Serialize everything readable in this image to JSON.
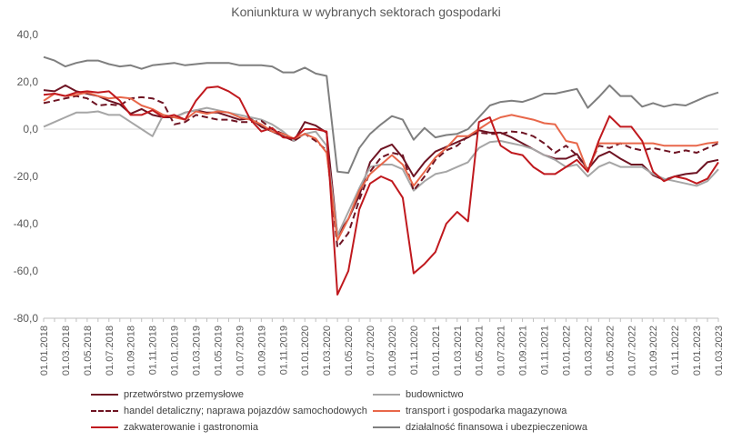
{
  "chart_data": {
    "type": "line",
    "title": "Koniunktura w wybranych sektorach gospodarki",
    "xlabel": "",
    "ylabel": "",
    "ylim": [
      -80,
      40
    ],
    "yticks": [
      40,
      20,
      0,
      -20,
      -40,
      -60,
      -80
    ],
    "ytick_labels": [
      "40,0",
      "20,0",
      "0,0",
      "-20,0",
      "-40,0",
      "-60,0",
      "-80,0"
    ],
    "x": [
      "01.01.2018",
      "01.02.2018",
      "01.03.2018",
      "01.04.2018",
      "01.05.2018",
      "01.06.2018",
      "01.07.2018",
      "01.08.2018",
      "01.09.2018",
      "01.10.2018",
      "01.11.2018",
      "01.12.2018",
      "01.01.2019",
      "01.02.2019",
      "01.03.2019",
      "01.04.2019",
      "01.05.2019",
      "01.06.2019",
      "01.07.2019",
      "01.08.2019",
      "01.09.2019",
      "01.10.2019",
      "01.11.2019",
      "01.12.2019",
      "01.01.2020",
      "01.02.2020",
      "01.03.2020",
      "01.04.2020",
      "01.05.2020",
      "01.06.2020",
      "01.07.2020",
      "01.08.2020",
      "01.09.2020",
      "01.10.2020",
      "01.11.2020",
      "01.12.2020",
      "01.01.2021",
      "01.02.2021",
      "01.03.2021",
      "01.04.2021",
      "01.05.2021",
      "01.06.2021",
      "01.07.2021",
      "01.08.2021",
      "01.09.2021",
      "01.10.2021",
      "01.11.2021",
      "01.12.2021",
      "01.01.2022",
      "01.02.2022",
      "01.03.2022",
      "01.04.2022",
      "01.05.2022",
      "01.06.2022",
      "01.07.2022",
      "01.08.2022",
      "01.09.2022",
      "01.10.2022",
      "01.11.2022",
      "01.12.2022",
      "01.01.2023",
      "01.02.2023",
      "01.03.2023"
    ],
    "x_tick_labels": [
      "01.01.2018",
      "01.03.2018",
      "01.05.2018",
      "01.07.2018",
      "01.09.2018",
      "01.11.2018",
      "01.01.2019",
      "01.03.2019",
      "01.05.2019",
      "01.07.2019",
      "01.09.2019",
      "01.11.2019",
      "01.01.2020",
      "01.03.2020",
      "01.05.2020",
      "01.07.2020",
      "01.09.2020",
      "01.11.2020",
      "01.01.2021",
      "01.03.2021",
      "01.05.2021",
      "01.07.2021",
      "01.09.2021",
      "01.11.2021",
      "01.01.2022",
      "01.03.2022",
      "01.05.2022",
      "01.07.2022",
      "01.09.2022",
      "01.11.2022",
      "01.01.2023",
      "01.03.2023"
    ],
    "legend_position": "bottom",
    "grid": false,
    "series": [
      {
        "name": "przetwórstwo przemysłowe",
        "color": "#6e1423",
        "dash": "solid",
        "values": [
          16.5,
          16,
          18.5,
          16,
          15,
          14,
          12,
          10.5,
          6.5,
          8.5,
          6,
          5,
          5,
          7,
          8,
          7,
          7,
          5.5,
          4,
          4.5,
          1,
          -1,
          -3,
          -5,
          3,
          1.5,
          -1.5,
          -45,
          -38,
          -28,
          -14,
          -8.5,
          -6.5,
          -12,
          -20,
          -14,
          -9.5,
          -7.5,
          -5.5,
          -3.5,
          -0.5,
          -1.5,
          -1.5,
          -3.5,
          -6,
          -8.5,
          -11,
          -12.5,
          -12.5,
          -10.5,
          -17,
          -11.5,
          -9.5,
          -12.5,
          -15,
          -15,
          -19.5,
          -21.5,
          -20,
          -19,
          -18.5,
          -14,
          -13
        ]
      },
      {
        "name": "budownictwo",
        "color": "#a6a6a6",
        "dash": "solid",
        "values": [
          1,
          3,
          5,
          7,
          7,
          7.5,
          6,
          6,
          3,
          0,
          -3,
          6,
          5,
          7,
          8,
          9,
          8,
          7,
          6,
          5,
          4,
          2,
          -1,
          -5,
          -2,
          -1,
          -7,
          -45,
          -35,
          -25,
          -16,
          -15,
          -15,
          -17,
          -26,
          -22,
          -19,
          -18,
          -16,
          -14,
          -8,
          -5.5,
          -5,
          -6,
          -7,
          -8.5,
          -11,
          -13,
          -16,
          -15,
          -20,
          -16,
          -14,
          -16,
          -16,
          -16,
          -19,
          -21,
          -22,
          -23,
          -24,
          -22,
          -17
        ]
      },
      {
        "name": "handel detaliczny; naprawa pojazdów samochodowych",
        "color": "#6e1423",
        "dash": "dashed",
        "values": [
          11,
          12,
          13,
          14,
          13,
          10,
          10.5,
          10,
          13,
          13.5,
          13,
          11,
          2,
          3,
          6,
          5,
          4,
          4,
          3,
          3,
          3.5,
          0,
          -2,
          -5,
          -2,
          -5,
          -9,
          -50,
          -44,
          -30,
          -18,
          -12,
          -10,
          -11,
          -26,
          -20,
          -13,
          -9,
          -7,
          -3,
          -1.5,
          -2,
          -2,
          -1,
          -1.5,
          -3,
          -6,
          -10,
          -7,
          -11,
          -17,
          -7,
          -8,
          -6,
          -8,
          -9,
          -8,
          -9,
          -10,
          -9,
          -10,
          -8,
          -6
        ]
      },
      {
        "name": "transport i gospodarka magazynowa",
        "color": "#e8674a",
        "dash": "solid",
        "values": [
          12,
          15,
          14,
          14.5,
          15.5,
          14,
          13,
          13.5,
          13,
          10,
          8.5,
          6,
          5,
          4,
          7.5,
          6.5,
          7.5,
          7,
          5,
          4,
          2,
          -1,
          -2,
          -4,
          -2,
          -4,
          -10,
          -47,
          -38,
          -26,
          -19,
          -15,
          -11,
          -15,
          -24,
          -18,
          -12,
          -8,
          -3,
          -3,
          0,
          3,
          5,
          6,
          5,
          4,
          2.5,
          2,
          -5,
          -6,
          -18,
          -6,
          -6,
          -6,
          -6,
          -6,
          -6,
          -7,
          -7,
          -7,
          -7,
          -6,
          -5.5
        ]
      },
      {
        "name": "zakwaterowanie i gastronomia",
        "color": "#c0191e",
        "dash": "solid",
        "values": [
          14.5,
          15,
          14,
          15.5,
          16,
          15.5,
          16,
          12,
          6,
          6,
          8,
          5,
          6,
          4,
          12,
          17.5,
          18,
          16,
          13,
          4,
          -1,
          0.5,
          -3.5,
          -4,
          0,
          0,
          -1,
          -70,
          -60,
          -34,
          -23,
          -20,
          -22,
          -29,
          -61,
          -57,
          -52,
          -40,
          -35,
          -39,
          3,
          5,
          -7,
          -10,
          -11,
          -16,
          -19,
          -19,
          -16,
          -13,
          -18,
          -5,
          5.5,
          1,
          1,
          -5,
          -18,
          -22,
          -20,
          -21,
          -23,
          -21,
          -14
        ]
      },
      {
        "name": "działalność finansowa i ubezpieczeniowa",
        "color": "#7f7f7f",
        "dash": "solid",
        "values": [
          30.5,
          29,
          26.5,
          28,
          29,
          29,
          27.5,
          26.5,
          27,
          25.5,
          27,
          27.5,
          28,
          27,
          27.5,
          28,
          28,
          28,
          27,
          27,
          27,
          26.5,
          24,
          24,
          26,
          23.5,
          22.5,
          -18,
          -18.5,
          -8,
          -2,
          2,
          5.5,
          4,
          -4.5,
          0.5,
          -3.5,
          -2.5,
          -2,
          0,
          5,
          10,
          11.5,
          12,
          11.5,
          13,
          15,
          15,
          16,
          17,
          9,
          13.5,
          18.5,
          14,
          14,
          9.5,
          11,
          9.5,
          10.5,
          10,
          12,
          14,
          15.5
        ]
      }
    ]
  }
}
